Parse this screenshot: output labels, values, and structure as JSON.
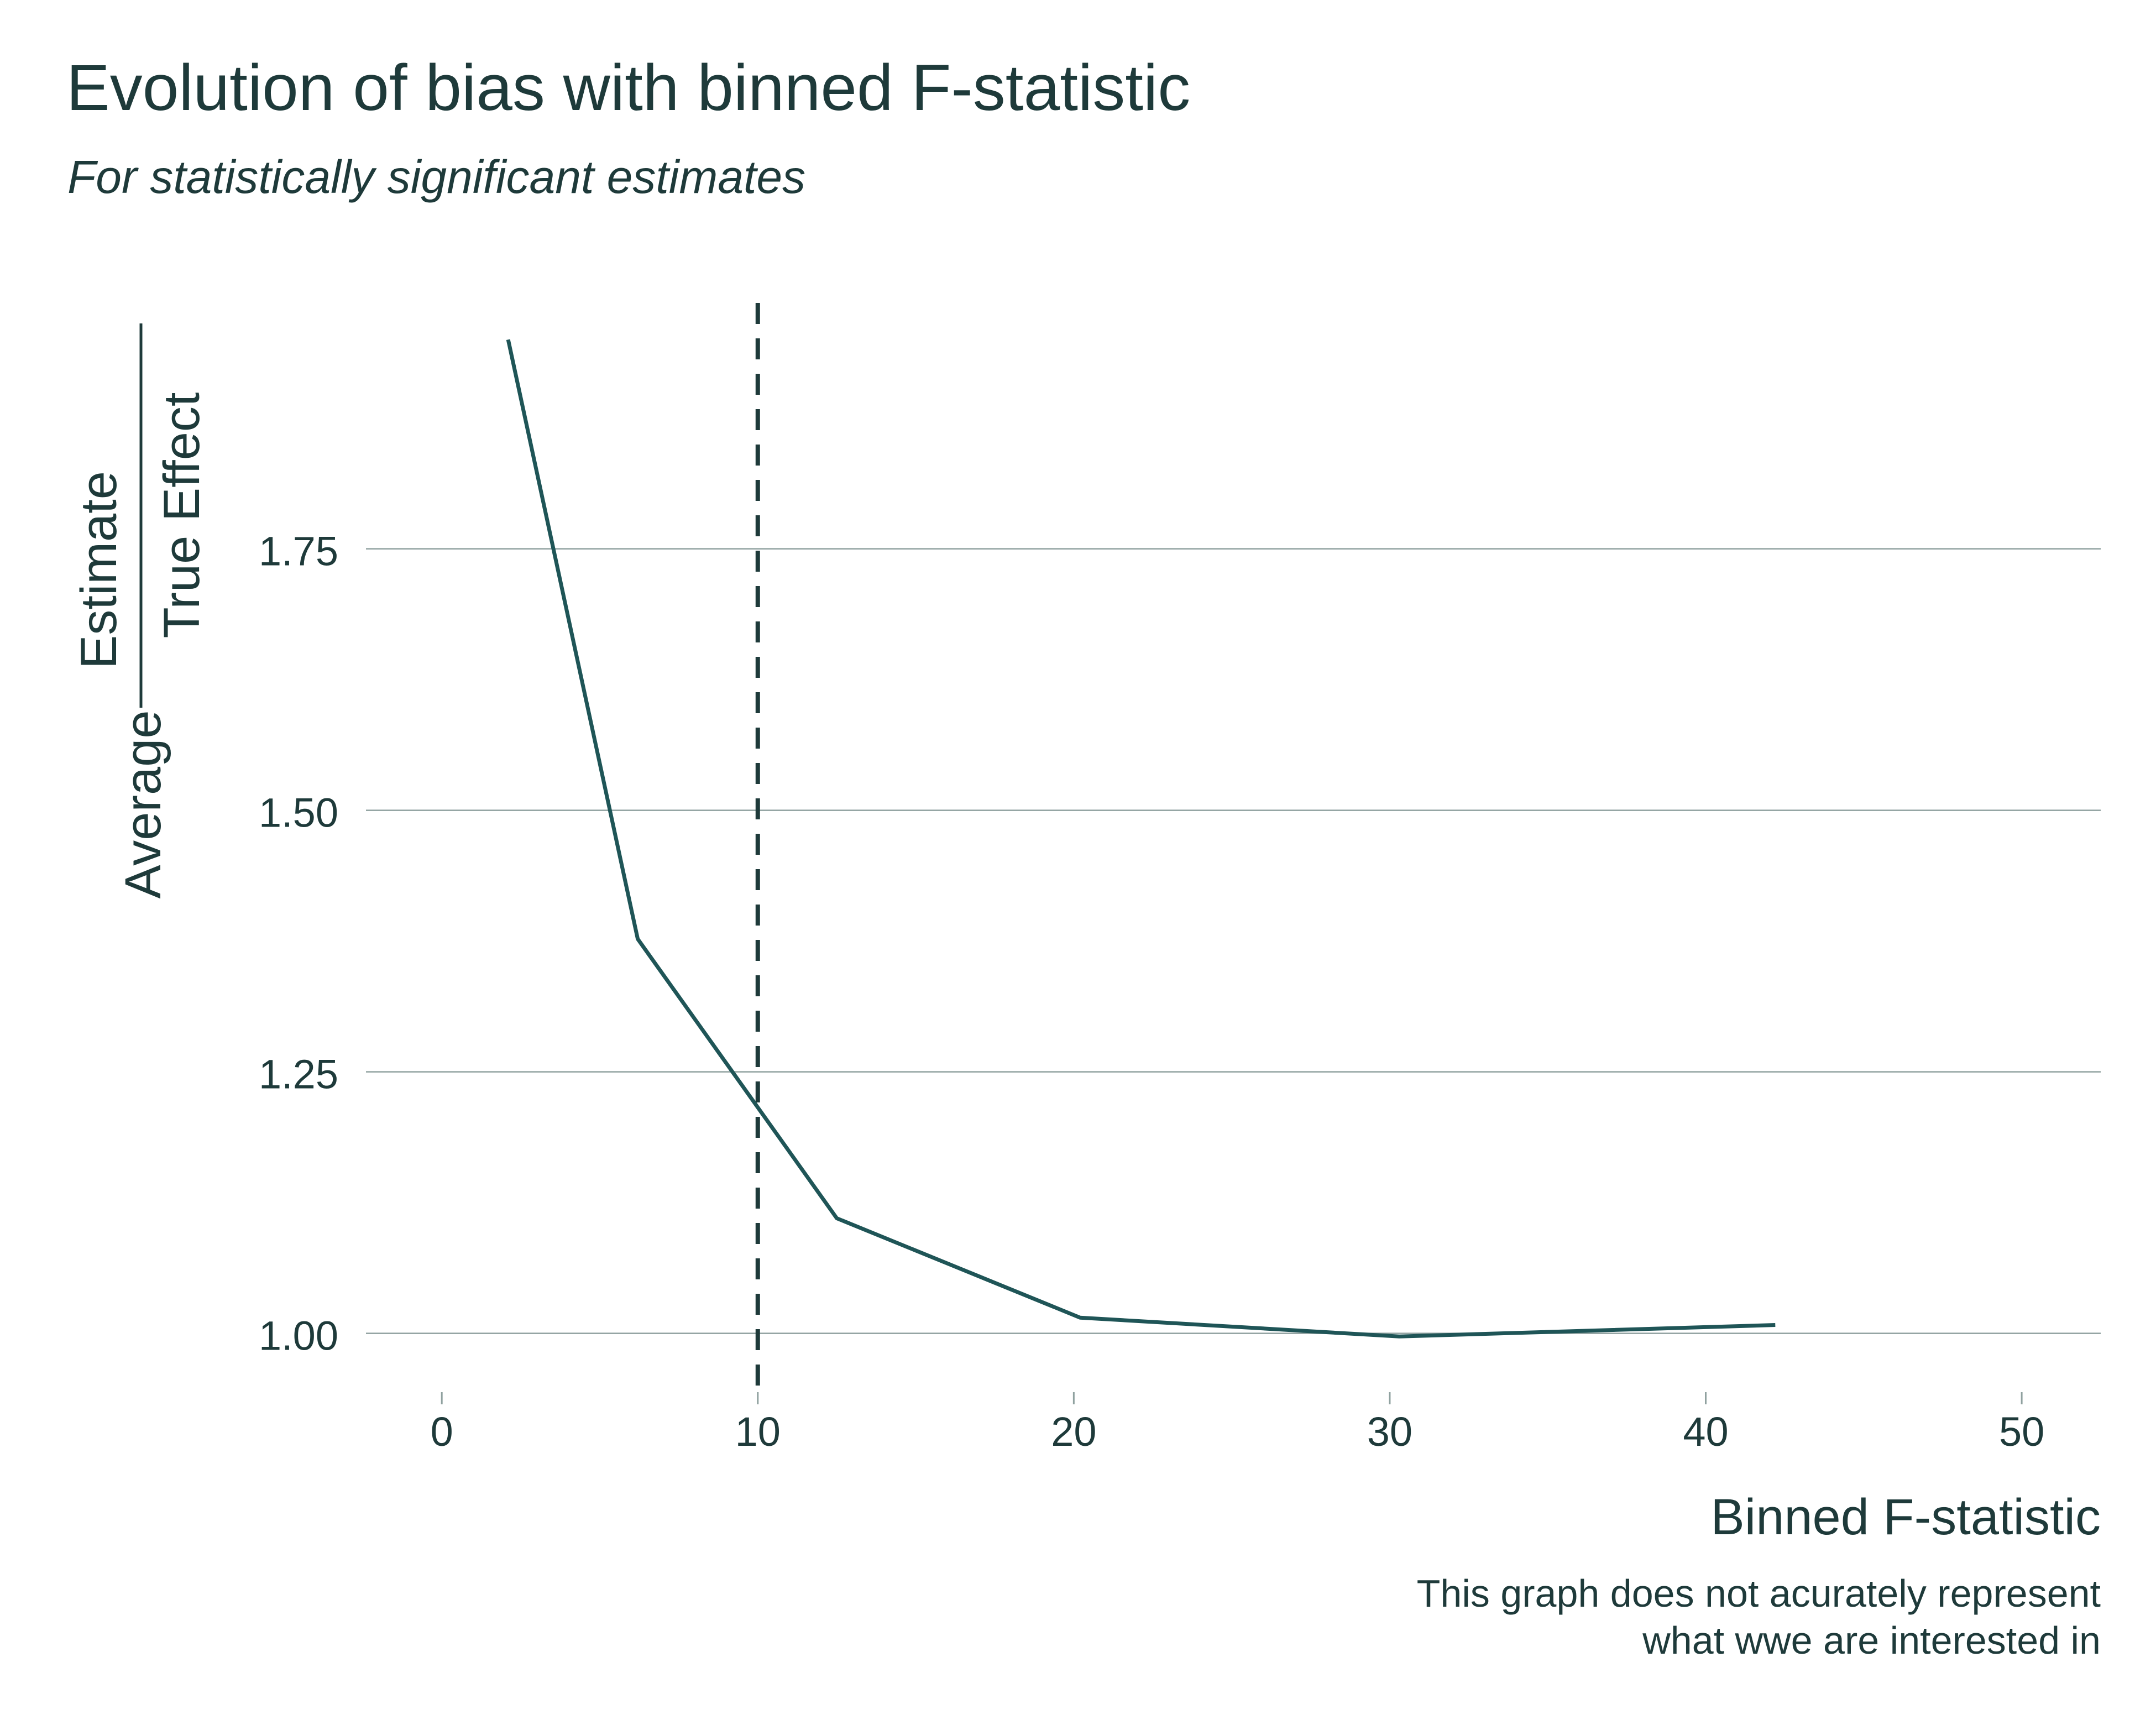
{
  "chart_data": {
    "type": "line",
    "title": "Evolution of bias with binned F-statistic",
    "subtitle": "For statistically significant estimates",
    "xlabel": "Binned F-statistic",
    "ylabel": {
      "prefix": "Average",
      "numerator": "Estimate",
      "denominator": "True Effect"
    },
    "caption": [
      "This graph does not acurately represent",
      "what wwe are interested in"
    ],
    "xlim": [
      -2.4,
      52.5
    ],
    "ylim": [
      0.948,
      1.985
    ],
    "x_ticks": [
      0,
      10,
      20,
      30,
      40,
      50
    ],
    "x_tick_labels": [
      "0",
      "10",
      "20",
      "30",
      "40",
      "50"
    ],
    "y_ticks": [
      1.0,
      1.25,
      1.5,
      1.75
    ],
    "y_tick_labels": [
      "1.00",
      "1.25",
      "1.50",
      "1.75"
    ],
    "grid": "horizontal",
    "reference_line": {
      "x": 10,
      "style": "dashed"
    },
    "series": [
      {
        "x": [
          2.1,
          6.2,
          12.5,
          20.2,
          30.3,
          42.2
        ],
        "y": [
          1.95,
          1.377,
          1.11,
          1.015,
          0.997,
          1.008
        ]
      }
    ],
    "colors": {
      "line": "#1f5557",
      "grid": "#8fa19f",
      "reference": "#1e3a3a",
      "text": "#1e3a3a"
    }
  }
}
